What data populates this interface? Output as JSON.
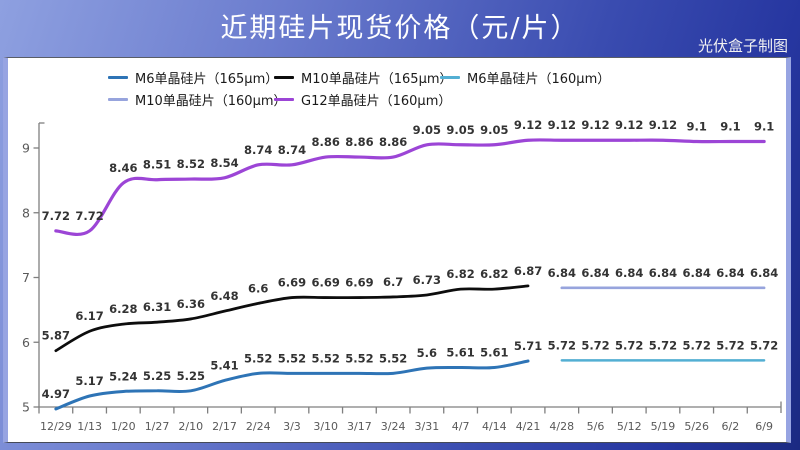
{
  "header": {
    "title": "近期硅片现货价格（元/片）",
    "credit": "光伏盒子制图"
  },
  "chart_data": {
    "type": "line",
    "title": "近期硅片现货价格（元/片）",
    "categories": [
      "12/29",
      "1/13",
      "1/20",
      "1/27",
      "2/10",
      "2/17",
      "2/24",
      "3/3",
      "3/10",
      "3/17",
      "3/24",
      "3/31",
      "4/7",
      "4/14",
      "4/21",
      "4/28",
      "5/6",
      "5/12",
      "5/19",
      "5/26",
      "6/2",
      "6/9"
    ],
    "series": [
      {
        "name": "M6单晶硅片（165μm）",
        "color": "#2e74b6",
        "start_index": 0,
        "values": [
          4.97,
          5.17,
          5.24,
          5.25,
          5.25,
          5.41,
          5.52,
          5.52,
          5.52,
          5.52,
          5.52,
          5.6,
          5.61,
          5.61,
          5.71
        ]
      },
      {
        "name": "M10单晶硅片（165μm）",
        "color": "#0d0d0d",
        "start_index": 0,
        "values": [
          5.87,
          6.17,
          6.28,
          6.31,
          6.36,
          6.48,
          6.6,
          6.69,
          6.69,
          6.69,
          6.7,
          6.73,
          6.82,
          6.82,
          6.87
        ]
      },
      {
        "name": "M6单晶硅片（160μm）",
        "color": "#53afd3",
        "start_index": 15,
        "values": [
          5.72,
          5.72,
          5.72,
          5.72,
          5.72,
          5.72,
          5.72
        ]
      },
      {
        "name": "M10单晶硅片（160μm）",
        "color": "#97a4dd",
        "start_index": 15,
        "values": [
          6.84,
          6.84,
          6.84,
          6.84,
          6.84,
          6.84,
          6.84
        ]
      },
      {
        "name": "G12单晶硅片（160μm）",
        "color": "#9c45d6",
        "start_index": 0,
        "values": [
          7.72,
          7.72,
          8.46,
          8.51,
          8.52,
          8.54,
          8.74,
          8.74,
          8.86,
          8.86,
          8.86,
          9.05,
          9.05,
          9.05,
          9.12,
          9.12,
          9.12,
          9.12,
          9.12,
          9.1,
          9.1,
          9.1
        ]
      }
    ],
    "xlabel": "",
    "ylabel": "",
    "ylim": [
      5,
      9.6
    ],
    "yticks": [
      5,
      6,
      7,
      8,
      9
    ],
    "grid": false,
    "legend_position": "top",
    "data_labels": true,
    "axis_color": "#7f7f7f",
    "tick_label_color": "#595959",
    "data_label_color": "#333333"
  }
}
